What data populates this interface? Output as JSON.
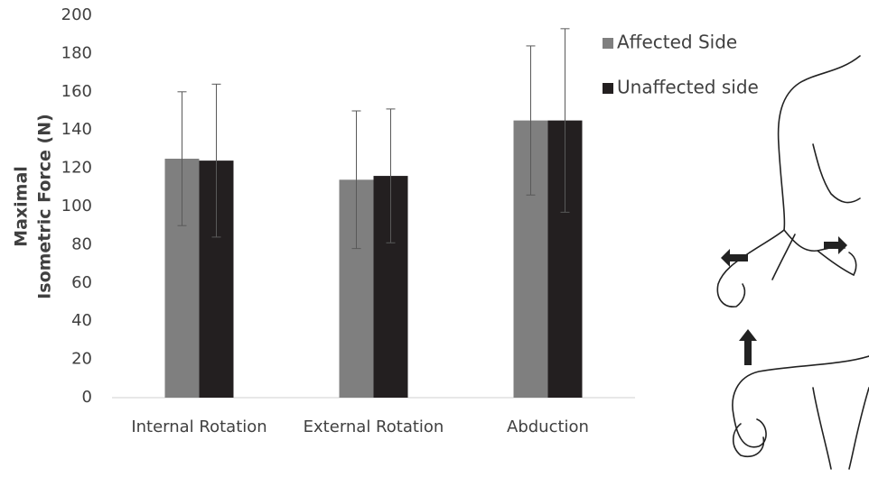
{
  "chart_data": {
    "type": "bar",
    "ylabel": [
      "Maximal",
      "Isometric Force (N)"
    ],
    "categories": [
      "Internal Rotation",
      "External Rotation",
      "Abduction"
    ],
    "series": [
      {
        "name": "Affected Side",
        "color": "#7f7f7f",
        "values": [
          125,
          114,
          145
        ],
        "errors": [
          35,
          36,
          39
        ]
      },
      {
        "name": "Unaffected side",
        "color": "#231f20",
        "values": [
          124,
          116,
          145
        ],
        "errors": [
          40,
          35,
          48
        ]
      }
    ],
    "ylim": [
      0,
      200
    ],
    "yticks": [
      0,
      20,
      40,
      60,
      80,
      100,
      120,
      140,
      160,
      180,
      200
    ],
    "legend": "top-right"
  }
}
